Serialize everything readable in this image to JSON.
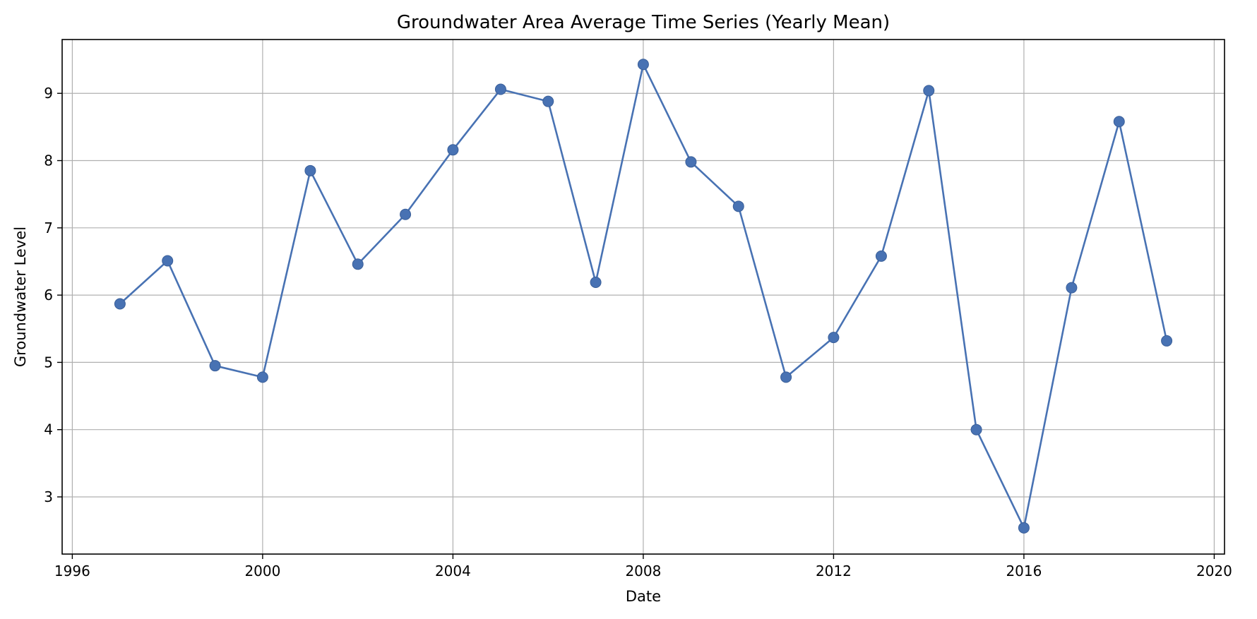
{
  "chart_data": {
    "type": "line",
    "title": "Groundwater Area Average Time Series (Yearly Mean)",
    "xlabel": "Date",
    "ylabel": "Groundwater Level",
    "xlim": [
      "1995-10-15",
      "2020-03-20"
    ],
    "ylim": [
      2.15,
      9.8
    ],
    "x_ticks": [
      "1996",
      "2000",
      "2004",
      "2008",
      "2012",
      "2016",
      "2020"
    ],
    "y_ticks": [
      "3",
      "4",
      "5",
      "6",
      "7",
      "8",
      "9"
    ],
    "grid": true,
    "legend": "none",
    "colors": {
      "line": "#4872b3",
      "marker": "#4872b3",
      "grid": "#b0b0b0"
    },
    "series": [
      {
        "x": [
          "1997-01-01",
          "1998-01-01",
          "1999-01-01",
          "2000-01-01",
          "2001-01-01",
          "2002-01-01",
          "2003-01-01",
          "2004-01-01",
          "2005-01-01",
          "2006-01-01",
          "2007-01-01",
          "2008-01-01",
          "2009-01-01",
          "2010-01-01",
          "2011-01-01",
          "2012-01-01",
          "2013-01-01",
          "2014-01-01",
          "2015-01-01",
          "2016-01-01",
          "2017-01-01",
          "2018-01-01",
          "2019-01-01"
        ],
        "values": [
          5.87,
          6.51,
          4.95,
          4.78,
          7.85,
          6.46,
          7.2,
          8.16,
          9.06,
          8.88,
          6.19,
          9.43,
          7.98,
          7.32,
          4.78,
          5.37,
          6.58,
          9.04,
          4.0,
          2.54,
          6.11,
          8.58,
          5.32
        ]
      }
    ]
  }
}
